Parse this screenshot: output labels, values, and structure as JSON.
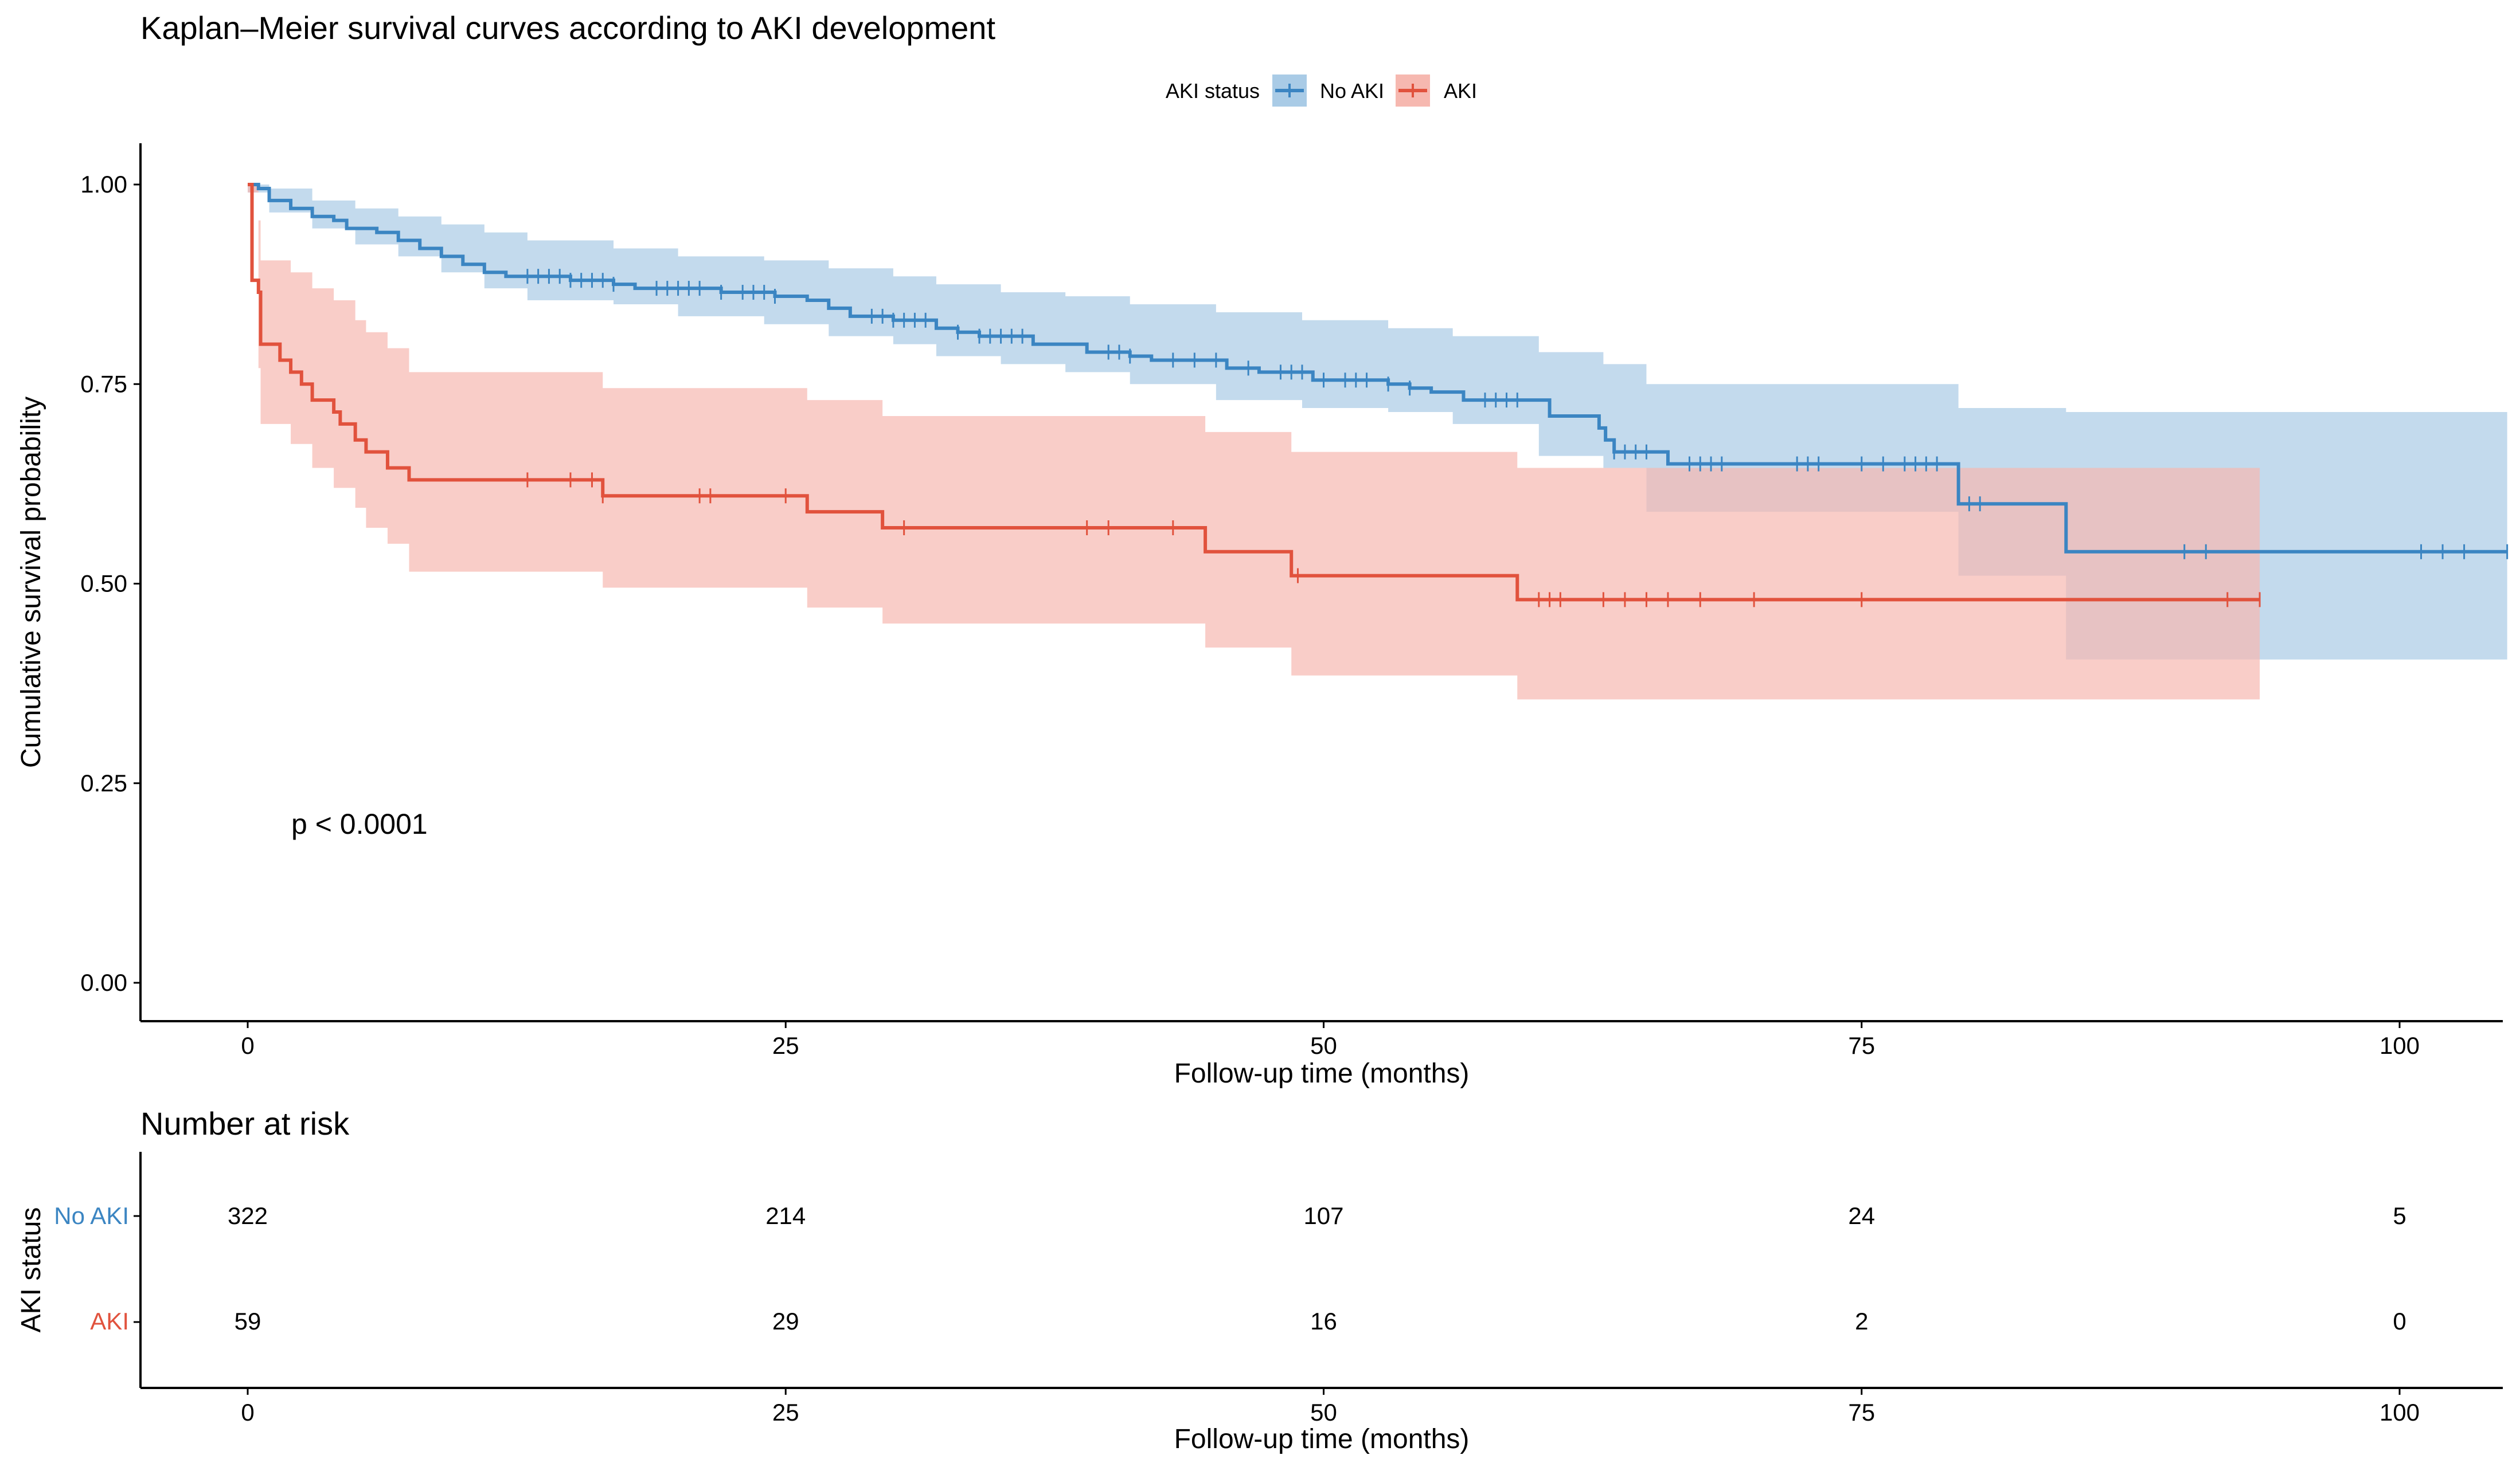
{
  "chart_data": {
    "type": "line",
    "title": "Kaplan–Meier survival curves according to AKI development",
    "xlabel": "Follow-up time (months)",
    "ylabel": "Cumulative survival probability",
    "xlim": [
      -5,
      105
    ],
    "ylim": [
      -0.05,
      1.05
    ],
    "x_ticks": [
      0,
      25,
      50,
      75,
      100
    ],
    "y_ticks": [
      0.0,
      0.25,
      0.5,
      0.75,
      1.0
    ],
    "y_tick_labels": [
      "0.00",
      "0.25",
      "0.50",
      "0.75",
      "1.00"
    ],
    "legend": {
      "title": "AKI status",
      "position": "top",
      "entries": [
        "No AKI",
        "AKI"
      ]
    },
    "annotation": "p < 0.0001",
    "series": [
      {
        "name": "No AKI",
        "color": "#3b85c2",
        "band_color": "#a9cbe6",
        "steps": [
          [
            0,
            1.0
          ],
          [
            0.5,
            0.995
          ],
          [
            1,
            0.98
          ],
          [
            2,
            0.97
          ],
          [
            3,
            0.96
          ],
          [
            4,
            0.955
          ],
          [
            4.6,
            0.945
          ],
          [
            6,
            0.94
          ],
          [
            7,
            0.93
          ],
          [
            8,
            0.92
          ],
          [
            9,
            0.91
          ],
          [
            10,
            0.9
          ],
          [
            11,
            0.89
          ],
          [
            12,
            0.885
          ],
          [
            15,
            0.88
          ],
          [
            17,
            0.875
          ],
          [
            18,
            0.87
          ],
          [
            22,
            0.865
          ],
          [
            24.5,
            0.86
          ],
          [
            26,
            0.855
          ],
          [
            27,
            0.845
          ],
          [
            28,
            0.835
          ],
          [
            30,
            0.83
          ],
          [
            32,
            0.82
          ],
          [
            33,
            0.815
          ],
          [
            34,
            0.81
          ],
          [
            36.5,
            0.8
          ],
          [
            39,
            0.79
          ],
          [
            41,
            0.785
          ],
          [
            42,
            0.78
          ],
          [
            45.5,
            0.77
          ],
          [
            47,
            0.765
          ],
          [
            49.5,
            0.755
          ],
          [
            53,
            0.75
          ],
          [
            54,
            0.745
          ],
          [
            55,
            0.74
          ],
          [
            56.5,
            0.73
          ],
          [
            60.5,
            0.71
          ],
          [
            62.8,
            0.695
          ],
          [
            63.1,
            0.68
          ],
          [
            63.5,
            0.665
          ],
          [
            66,
            0.65
          ],
          [
            79.5,
            0.6
          ],
          [
            84.5,
            0.54
          ],
          [
            105,
            0.54
          ]
        ],
        "upper": [
          [
            0,
            1.0
          ],
          [
            1,
            0.995
          ],
          [
            3,
            0.98
          ],
          [
            5,
            0.97
          ],
          [
            7,
            0.96
          ],
          [
            9,
            0.95
          ],
          [
            11,
            0.94
          ],
          [
            13,
            0.93
          ],
          [
            17,
            0.92
          ],
          [
            20,
            0.91
          ],
          [
            24,
            0.905
          ],
          [
            27,
            0.895
          ],
          [
            30,
            0.885
          ],
          [
            32,
            0.875
          ],
          [
            35,
            0.865
          ],
          [
            38,
            0.86
          ],
          [
            41,
            0.85
          ],
          [
            45,
            0.84
          ],
          [
            49,
            0.83
          ],
          [
            53,
            0.82
          ],
          [
            56,
            0.81
          ],
          [
            60,
            0.79
          ],
          [
            63,
            0.775
          ],
          [
            65,
            0.75
          ],
          [
            79.5,
            0.72
          ],
          [
            84.5,
            0.715
          ],
          [
            105,
            0.715
          ]
        ],
        "lower": [
          [
            0,
            0.99
          ],
          [
            1,
            0.965
          ],
          [
            3,
            0.945
          ],
          [
            5,
            0.925
          ],
          [
            7,
            0.91
          ],
          [
            9,
            0.89
          ],
          [
            11,
            0.87
          ],
          [
            13,
            0.855
          ],
          [
            17,
            0.85
          ],
          [
            20,
            0.835
          ],
          [
            24,
            0.825
          ],
          [
            27,
            0.81
          ],
          [
            30,
            0.8
          ],
          [
            32,
            0.785
          ],
          [
            35,
            0.775
          ],
          [
            38,
            0.765
          ],
          [
            41,
            0.75
          ],
          [
            45,
            0.73
          ],
          [
            49,
            0.72
          ],
          [
            53,
            0.715
          ],
          [
            56,
            0.7
          ],
          [
            60,
            0.66
          ],
          [
            63,
            0.645
          ],
          [
            65,
            0.59
          ],
          [
            79.5,
            0.51
          ],
          [
            84.5,
            0.405
          ],
          [
            105,
            0.405
          ]
        ],
        "censor_x": [
          13,
          13.5,
          14,
          14.5,
          15,
          15.5,
          16,
          16.5,
          17,
          19,
          19.5,
          20,
          20.5,
          21,
          22,
          23,
          23.5,
          24,
          24.5,
          29,
          29.5,
          30,
          30.5,
          31,
          31.5,
          33,
          34,
          34.5,
          35,
          35.5,
          36,
          40,
          40.5,
          41,
          43,
          44,
          45,
          46.5,
          48,
          48.5,
          49,
          50,
          51,
          51.5,
          52,
          53,
          54,
          57.5,
          58,
          58.5,
          59,
          63.5,
          64,
          64.5,
          65,
          67,
          67.5,
          68,
          68.5,
          72,
          72.5,
          73,
          75,
          76,
          77,
          77.5,
          78,
          78.5,
          80,
          80.5,
          90,
          91,
          101,
          102,
          103,
          105
        ]
      },
      {
        "name": "AKI",
        "color": "#e1523d",
        "band_color": "#f6b8b0",
        "steps": [
          [
            0,
            1.0
          ],
          [
            0.2,
            0.88
          ],
          [
            0.5,
            0.865
          ],
          [
            0.6,
            0.8
          ],
          [
            1.5,
            0.78
          ],
          [
            2,
            0.765
          ],
          [
            2.5,
            0.75
          ],
          [
            3,
            0.73
          ],
          [
            4,
            0.715
          ],
          [
            4.3,
            0.7
          ],
          [
            5,
            0.68
          ],
          [
            5.5,
            0.665
          ],
          [
            6.5,
            0.645
          ],
          [
            7.5,
            0.63
          ],
          [
            16.5,
            0.61
          ],
          [
            26,
            0.59
          ],
          [
            29.5,
            0.57
          ],
          [
            44.5,
            0.54
          ],
          [
            48.5,
            0.51
          ],
          [
            59,
            0.48
          ],
          [
            93.5,
            0.48
          ]
        ],
        "upper": [
          [
            0,
            1.0
          ],
          [
            0.5,
            0.955
          ],
          [
            0.6,
            0.905
          ],
          [
            2,
            0.89
          ],
          [
            3,
            0.87
          ],
          [
            4,
            0.855
          ],
          [
            5,
            0.83
          ],
          [
            5.5,
            0.815
          ],
          [
            6.5,
            0.795
          ],
          [
            7.5,
            0.765
          ],
          [
            16.5,
            0.745
          ],
          [
            26,
            0.73
          ],
          [
            29.5,
            0.71
          ],
          [
            44.5,
            0.69
          ],
          [
            48.5,
            0.665
          ],
          [
            59,
            0.645
          ],
          [
            93.5,
            0.645
          ]
        ],
        "lower": [
          [
            0,
            0.99
          ],
          [
            0.5,
            0.77
          ],
          [
            0.6,
            0.7
          ],
          [
            2,
            0.675
          ],
          [
            3,
            0.645
          ],
          [
            4,
            0.62
          ],
          [
            5,
            0.595
          ],
          [
            5.5,
            0.57
          ],
          [
            6.5,
            0.55
          ],
          [
            7.5,
            0.515
          ],
          [
            16.5,
            0.495
          ],
          [
            26,
            0.47
          ],
          [
            29.5,
            0.45
          ],
          [
            44.5,
            0.42
          ],
          [
            48.5,
            0.385
          ],
          [
            59,
            0.355
          ],
          [
            93.5,
            0.355
          ]
        ],
        "censor_x": [
          13,
          15,
          16,
          16.5,
          21,
          21.5,
          25,
          30.5,
          39,
          40,
          43,
          48.8,
          60,
          60.5,
          61,
          63,
          64,
          65,
          66,
          67.5,
          70,
          75,
          92,
          93.5
        ]
      }
    ],
    "risk_table": {
      "title": "Number at risk",
      "ylabel": "AKI status",
      "xlabel": "Follow-up time (months)",
      "x_ticks": [
        0,
        25,
        50,
        75,
        100
      ],
      "rows": [
        {
          "name": "No AKI",
          "color": "#3b85c2",
          "values": [
            322,
            214,
            107,
            24,
            5
          ]
        },
        {
          "name": "AKI",
          "color": "#e1523d",
          "values": [
            59,
            29,
            16,
            2,
            0
          ]
        }
      ]
    }
  }
}
